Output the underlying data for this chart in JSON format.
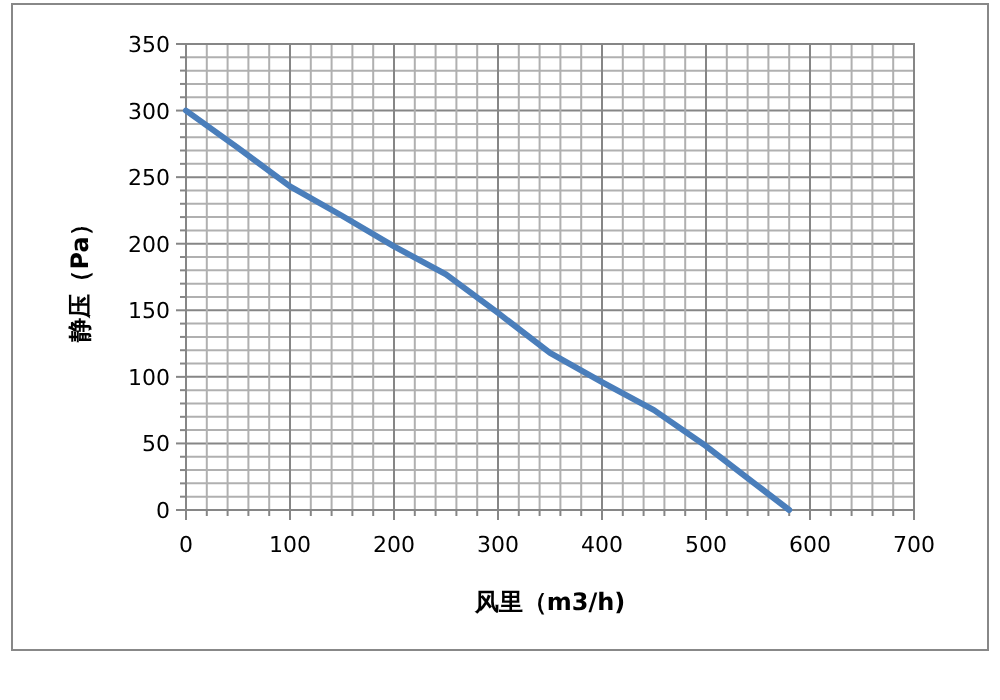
{
  "chart_data": {
    "type": "line",
    "xlabel": "风里（m3/h)",
    "ylabel": "静压（Pa）",
    "x": [
      0,
      50,
      100,
      150,
      200,
      250,
      300,
      350,
      400,
      450,
      500,
      550,
      580
    ],
    "series": [
      {
        "color": "#4a7ebb",
        "values": [
          300,
          272,
          243,
          221,
          198,
          177,
          148,
          118,
          96,
          75,
          48,
          18,
          0
        ]
      }
    ],
    "xlim": [
      0,
      700
    ],
    "xticks": [
      0,
      {
        "value": 20,
        "label": null
      },
      {
        "value": 40,
        "label": null
      },
      {
        "value": 60,
        "label": null
      },
      {
        "value": 80,
        "label": null
      },
      100,
      {
        "value": 120,
        "label": null
      },
      {
        "value": 140,
        "label": null
      },
      {
        "value": 160,
        "label": null
      },
      {
        "value": 180,
        "label": null
      },
      200,
      {
        "value": 220,
        "label": null
      },
      {
        "value": 240,
        "label": null
      },
      {
        "value": 260,
        "label": null
      },
      {
        "value": 280,
        "label": null
      },
      300,
      {
        "value": 320,
        "label": null
      },
      {
        "value": 340,
        "label": null
      },
      {
        "value": 360,
        "label": null
      },
      {
        "value": 380,
        "label": null
      },
      400,
      {
        "value": 420,
        "label": null
      },
      {
        "value": 440,
        "label": null
      },
      {
        "value": 460,
        "label": null
      },
      {
        "value": 480,
        "label": null
      },
      500,
      {
        "value": 520,
        "label": null
      },
      {
        "value": 540,
        "label": null
      },
      {
        "value": 560,
        "label": null
      },
      {
        "value": 580,
        "label": null
      },
      600,
      {
        "value": 620,
        "label": null
      },
      {
        "value": 640,
        "label": null
      },
      {
        "value": 660,
        "label": null
      },
      {
        "value": 680,
        "label": null
      },
      700
    ],
    "ylim": [
      0,
      350
    ],
    "yticks": [
      0,
      {
        "value": 10,
        "label": null
      },
      {
        "value": 20,
        "label": null
      },
      {
        "value": 30,
        "label": null
      },
      {
        "value": 40,
        "label": null
      },
      50,
      {
        "value": 60,
        "label": null
      },
      {
        "value": 70,
        "label": null
      },
      {
        "value": 80,
        "label": null
      },
      {
        "value": 90,
        "label": null
      },
      100,
      {
        "value": 110,
        "label": null
      },
      {
        "value": 120,
        "label": null
      },
      {
        "value": 130,
        "label": null
      },
      {
        "value": 140,
        "label": null
      },
      150,
      {
        "value": 160,
        "label": null
      },
      {
        "value": 170,
        "label": null
      },
      {
        "value": 180,
        "label": null
      },
      {
        "value": 190,
        "label": null
      },
      200,
      {
        "value": 210,
        "label": null
      },
      {
        "value": 220,
        "label": null
      },
      {
        "value": 230,
        "label": null
      },
      {
        "value": 240,
        "label": null
      },
      250,
      {
        "value": 260,
        "label": null
      },
      {
        "value": 270,
        "label": null
      },
      {
        "value": 280,
        "label": null
      },
      {
        "value": 290,
        "label": null
      },
      300,
      {
        "value": 310,
        "label": null
      },
      {
        "value": 320,
        "label": null
      },
      {
        "value": 330,
        "label": null
      },
      {
        "value": 340,
        "label": null
      },
      350
    ],
    "grid": true,
    "marker": "none",
    "line_style": "solid"
  }
}
